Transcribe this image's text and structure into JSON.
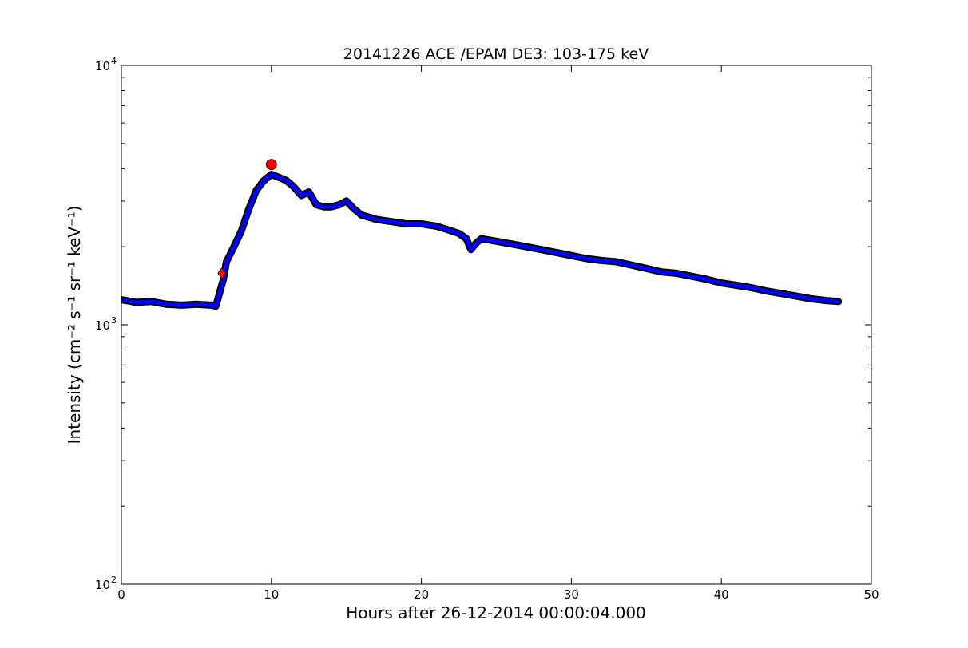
{
  "chart_data": {
    "type": "line",
    "title": "20141226 ACE /EPAM DE3: 103-175 keV",
    "xlabel": "Hours after 26-12-2014 00:00:04.000",
    "ylabel": "Intensity (cm⁻² s⁻¹ sr⁻¹ keV⁻¹)",
    "xlim": [
      0,
      50
    ],
    "ylim": [
      100,
      10000
    ],
    "yscale": "log",
    "grid": false,
    "x_ticks": [
      0,
      10,
      20,
      30,
      40,
      50
    ],
    "x_tick_labels": [
      "0",
      "10",
      "20",
      "30",
      "40",
      "50"
    ],
    "y_ticks": [
      100,
      1000,
      10000
    ],
    "y_tick_labels": [
      {
        "base": "10",
        "exp": "2"
      },
      {
        "base": "10",
        "exp": "3"
      },
      {
        "base": "10",
        "exp": "4"
      }
    ],
    "series": [
      {
        "role": "raw intensity",
        "color": "#000000",
        "x": [
          0,
          1,
          2,
          3,
          4,
          5,
          6,
          6.3,
          6.5,
          6.8,
          7.0,
          7.5,
          8.0,
          8.5,
          9.0,
          9.5,
          10.0,
          10.5,
          11.0,
          11.5,
          12.0,
          12.5,
          13.0,
          13.5,
          14.0,
          14.5,
          15.0,
          15.5,
          16.0,
          17.0,
          18.0,
          19.0,
          20.0,
          21.0,
          22.0,
          22.5,
          23.0,
          23.3,
          23.6,
          24.0,
          25.0,
          26.0,
          27.0,
          28.0,
          29.0,
          30.0,
          31.0,
          32.0,
          33.0,
          34.0,
          35.0,
          36.0,
          37.0,
          38.0,
          39.0,
          40.0,
          41.0,
          42.0,
          43.0,
          44.0,
          45.0,
          46.0,
          47.0,
          47.8
        ],
        "y": [
          1250,
          1220,
          1230,
          1200,
          1190,
          1200,
          1190,
          1180,
          1300,
          1500,
          1750,
          2000,
          2300,
          2800,
          3300,
          3600,
          3800,
          3700,
          3600,
          3400,
          3150,
          3250,
          2900,
          2850,
          2850,
          2900,
          3000,
          2800,
          2650,
          2550,
          2500,
          2450,
          2450,
          2400,
          2300,
          2250,
          2150,
          1950,
          2050,
          2150,
          2100,
          2050,
          2000,
          1950,
          1900,
          1850,
          1800,
          1770,
          1750,
          1700,
          1650,
          1600,
          1580,
          1540,
          1500,
          1450,
          1420,
          1390,
          1350,
          1320,
          1290,
          1260,
          1240,
          1230
        ]
      },
      {
        "role": "smoothed intensity",
        "color": "#0000ff",
        "x": [
          0,
          1,
          2,
          3,
          4,
          5,
          6,
          6.3,
          6.5,
          6.8,
          7.0,
          7.5,
          8.0,
          8.5,
          9.0,
          9.5,
          10.0,
          10.5,
          11.0,
          11.5,
          12.0,
          12.5,
          13.0,
          13.5,
          14.0,
          14.5,
          15.0,
          15.5,
          16.0,
          17.0,
          18.0,
          19.0,
          20.0,
          21.0,
          22.0,
          22.5,
          23.0,
          23.3,
          23.6,
          24.0,
          25.0,
          26.0,
          27.0,
          28.0,
          29.0,
          30.0,
          31.0,
          32.0,
          33.0,
          34.0,
          35.0,
          36.0,
          37.0,
          38.0,
          39.0,
          40.0,
          41.0,
          42.0,
          43.0,
          44.0,
          45.0,
          46.0,
          47.0,
          47.8
        ],
        "y": [
          1250,
          1220,
          1230,
          1200,
          1190,
          1200,
          1190,
          1180,
          1300,
          1500,
          1750,
          2000,
          2300,
          2800,
          3300,
          3600,
          3800,
          3700,
          3600,
          3400,
          3150,
          3250,
          2900,
          2850,
          2850,
          2900,
          3000,
          2800,
          2650,
          2550,
          2500,
          2450,
          2450,
          2400,
          2300,
          2250,
          2150,
          1950,
          2050,
          2150,
          2100,
          2050,
          2000,
          1950,
          1900,
          1850,
          1800,
          1770,
          1750,
          1700,
          1650,
          1600,
          1580,
          1540,
          1500,
          1450,
          1420,
          1390,
          1350,
          1320,
          1290,
          1260,
          1240,
          1230
        ]
      }
    ],
    "markers": [
      {
        "role": "onset",
        "shape": "diamond",
        "color": "#ff0000",
        "x": 6.7,
        "y": 1580
      },
      {
        "role": "peak",
        "shape": "circle",
        "color": "#ff0000",
        "x": 10.0,
        "y": 4150
      }
    ]
  }
}
